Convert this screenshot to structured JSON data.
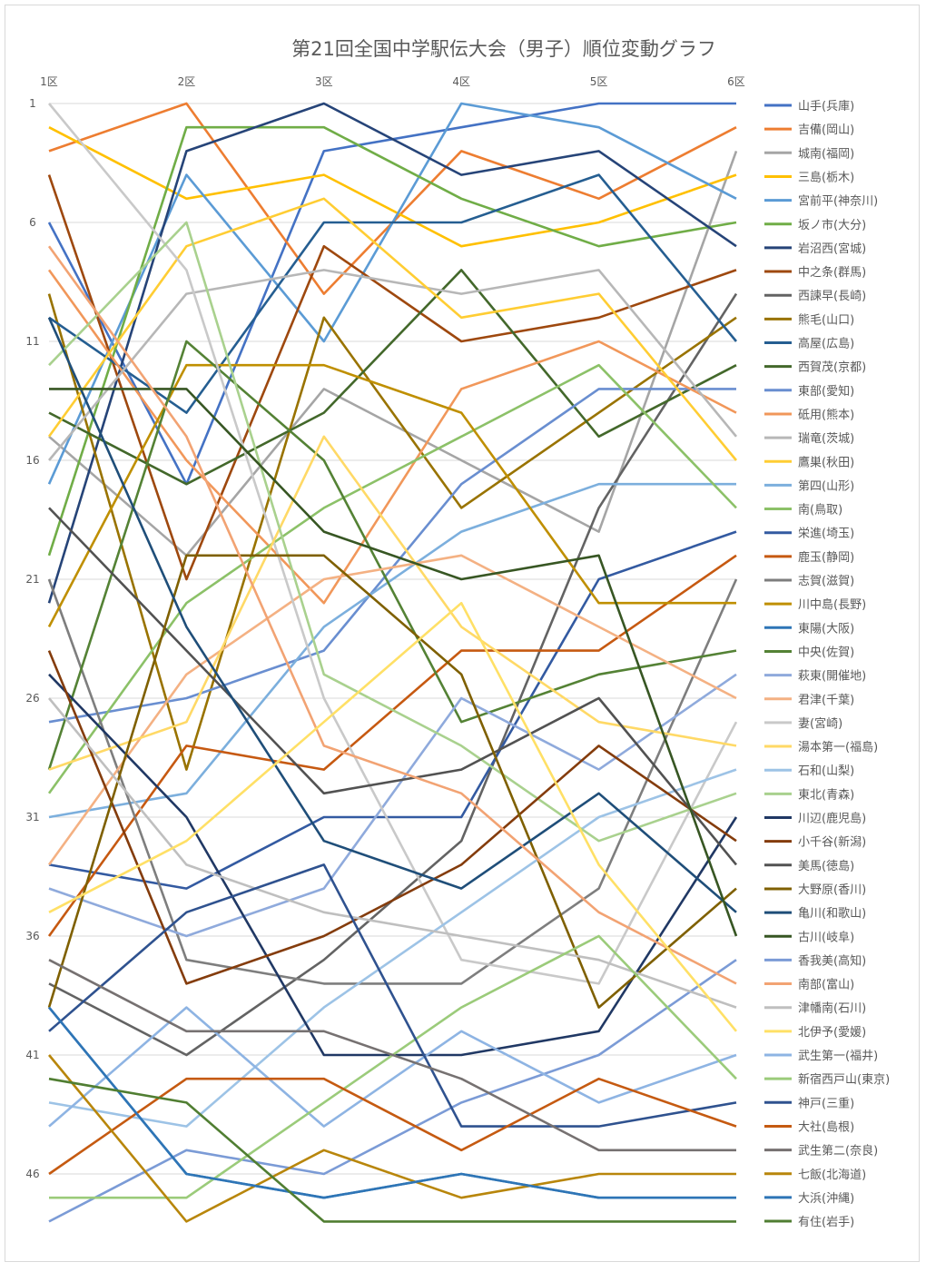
{
  "chart_data": {
    "type": "line",
    "title": "第21回全国中学駅伝大会（男子）順位変動グラフ",
    "categories": [
      "1区",
      "2区",
      "3区",
      "4区",
      "5区",
      "6区"
    ],
    "y_ticks": [
      1,
      6,
      11,
      16,
      21,
      26,
      31,
      36,
      41,
      46
    ],
    "ylim": [
      1,
      48
    ],
    "y_reversed": true,
    "grid": true,
    "legend_position": "right",
    "series": [
      {
        "name": "山手(兵庫)",
        "color": "#4472C4",
        "values": [
          6,
          17,
          3,
          2,
          1,
          1
        ]
      },
      {
        "name": "吉備(岡山)",
        "color": "#ED7D31",
        "values": [
          3,
          1,
          9,
          3,
          5,
          2
        ]
      },
      {
        "name": "城南(福岡)",
        "color": "#A5A5A5",
        "values": [
          15,
          20,
          13,
          16,
          19,
          3
        ]
      },
      {
        "name": "三島(栃木)",
        "color": "#FFC000",
        "values": [
          2,
          5,
          4,
          7,
          6,
          4
        ]
      },
      {
        "name": "宮前平(神奈川)",
        "color": "#5B9BD5",
        "values": [
          17,
          4,
          11,
          1,
          2,
          5
        ]
      },
      {
        "name": "坂ノ市(大分)",
        "color": "#70AD47",
        "values": [
          20,
          2,
          2,
          5,
          7,
          6
        ]
      },
      {
        "name": "岩沼西(宮城)",
        "color": "#264478",
        "values": [
          22,
          3,
          1,
          4,
          3,
          7
        ]
      },
      {
        "name": "中之条(群馬)",
        "color": "#9E480E",
        "values": [
          4,
          21,
          7,
          11,
          10,
          8
        ]
      },
      {
        "name": "西諫早(長崎)",
        "color": "#636363",
        "values": [
          38,
          41,
          37,
          32,
          18,
          9
        ]
      },
      {
        "name": "熊毛(山口)",
        "color": "#997300",
        "values": [
          9,
          29,
          10,
          18,
          14,
          10
        ]
      },
      {
        "name": "高屋(広島)",
        "color": "#255E91",
        "values": [
          10,
          14,
          6,
          6,
          4,
          11
        ]
      },
      {
        "name": "西賀茂(京都)",
        "color": "#43682B",
        "values": [
          14,
          17,
          14,
          8,
          15,
          12
        ]
      },
      {
        "name": "東部(愛知)",
        "color": "#698ED0",
        "values": [
          27,
          26,
          24,
          17,
          13,
          13
        ]
      },
      {
        "name": "砥用(熊本)",
        "color": "#F1975A",
        "values": [
          8,
          16,
          22,
          13,
          11,
          14
        ]
      },
      {
        "name": "瑞竜(茨城)",
        "color": "#B7B7B7",
        "values": [
          16,
          9,
          8,
          9,
          8,
          15
        ]
      },
      {
        "name": "鷹巣(秋田)",
        "color": "#FFCD33",
        "values": [
          15,
          7,
          5,
          10,
          9,
          16
        ]
      },
      {
        "name": "第四(山形)",
        "color": "#7CAFDD",
        "values": [
          31,
          30,
          23,
          19,
          17,
          17
        ]
      },
      {
        "name": "南(鳥取)",
        "color": "#8CC168",
        "values": [
          30,
          22,
          18,
          15,
          12,
          18
        ]
      },
      {
        "name": "栄進(埼玉)",
        "color": "#335AA1",
        "values": [
          33,
          34,
          31,
          31,
          21,
          19
        ]
      },
      {
        "name": "鹿玉(静岡)",
        "color": "#C65911",
        "values": [
          36,
          28,
          29,
          24,
          24,
          20
        ]
      },
      {
        "name": "志賀(滋賀)",
        "color": "#7E7E7E",
        "values": [
          21,
          37,
          38,
          38,
          34,
          21
        ]
      },
      {
        "name": "川中島(長野)",
        "color": "#BF8F00",
        "values": [
          23,
          12,
          12,
          14,
          22,
          22
        ]
      },
      {
        "name": "東陽(大阪)",
        "color": "#2E75B6",
        "values": [
          39,
          46,
          47,
          46,
          47,
          47
        ]
      },
      {
        "name": "中央(佐賀)",
        "color": "#548235",
        "values": [
          29,
          11,
          16,
          27,
          25,
          24
        ]
      },
      {
        "name": "萩東(開催地)",
        "color": "#8FAADC",
        "values": [
          34,
          36,
          34,
          26,
          29,
          25
        ]
      },
      {
        "name": "君津(千葉)",
        "color": "#F4B183",
        "values": [
          33,
          25,
          21,
          20,
          23,
          26
        ]
      },
      {
        "name": "妻(宮崎)",
        "color": "#C9C9C9",
        "values": [
          1,
          8,
          26,
          37,
          38,
          27
        ]
      },
      {
        "name": "湯本第一(福島)",
        "color": "#FFD966",
        "values": [
          29,
          27,
          15,
          23,
          27,
          28
        ]
      },
      {
        "name": "石和(山梨)",
        "color": "#9DC3E6",
        "values": [
          43,
          44,
          39,
          35,
          31,
          29
        ]
      },
      {
        "name": "東北(青森)",
        "color": "#A9D18E",
        "values": [
          12,
          6,
          25,
          28,
          32,
          30
        ]
      },
      {
        "name": "川辺(鹿児島)",
        "color": "#203864",
        "values": [
          25,
          31,
          41,
          41,
          40,
          31
        ]
      },
      {
        "name": "小千谷(新潟)",
        "color": "#843C0C",
        "values": [
          24,
          38,
          36,
          33,
          28,
          32
        ]
      },
      {
        "name": "美馬(徳島)",
        "color": "#525252",
        "values": [
          18,
          24,
          30,
          29,
          26,
          33
        ]
      },
      {
        "name": "大野原(香川)",
        "color": "#7F6000",
        "values": [
          39,
          20,
          20,
          25,
          39,
          34
        ]
      },
      {
        "name": "亀川(和歌山)",
        "color": "#1F4E79",
        "values": [
          10,
          23,
          32,
          34,
          30,
          35
        ]
      },
      {
        "name": "古川(岐阜)",
        "color": "#375623",
        "values": [
          13,
          13,
          19,
          21,
          20,
          36
        ]
      },
      {
        "name": "香我美(高知)",
        "color": "#7B9BD6",
        "values": [
          48,
          45,
          46,
          43,
          41,
          37
        ]
      },
      {
        "name": "南部(富山)",
        "color": "#F2A373",
        "values": [
          7,
          15,
          28,
          30,
          35,
          38
        ]
      },
      {
        "name": "津幡南(石川)",
        "color": "#BFBFBF",
        "values": [
          26,
          33,
          35,
          36,
          37,
          39
        ]
      },
      {
        "name": "北伊予(愛媛)",
        "color": "#FFE066",
        "values": [
          35,
          32,
          27,
          22,
          33,
          40
        ]
      },
      {
        "name": "武生第一(福井)",
        "color": "#8EB4E3",
        "values": [
          44,
          39,
          44,
          40,
          43,
          41
        ]
      },
      {
        "name": "新宿西戸山(東京)",
        "color": "#9BCB7A",
        "values": [
          47,
          47,
          43,
          39,
          36,
          42
        ]
      },
      {
        "name": "神戸(三重)",
        "color": "#2F528F",
        "values": [
          40,
          35,
          33,
          44,
          44,
          43
        ]
      },
      {
        "name": "大社(島根)",
        "color": "#C55A11",
        "values": [
          46,
          42,
          42,
          45,
          42,
          44
        ]
      },
      {
        "name": "武生第二(奈良)",
        "color": "#767171",
        "values": [
          37,
          40,
          40,
          42,
          45,
          45
        ]
      },
      {
        "name": "七飯(北海道)",
        "color": "#B8860B",
        "values": [
          41,
          48,
          45,
          47,
          46,
          46
        ]
      },
      {
        "name": "大浜(沖縄)",
        "color": "#2E75B6",
        "values": [
          39,
          46,
          47,
          46,
          47,
          47
        ]
      },
      {
        "name": "有住(岩手)",
        "color": "#507E32",
        "values": [
          42,
          43,
          48,
          48,
          48,
          48
        ]
      }
    ]
  }
}
